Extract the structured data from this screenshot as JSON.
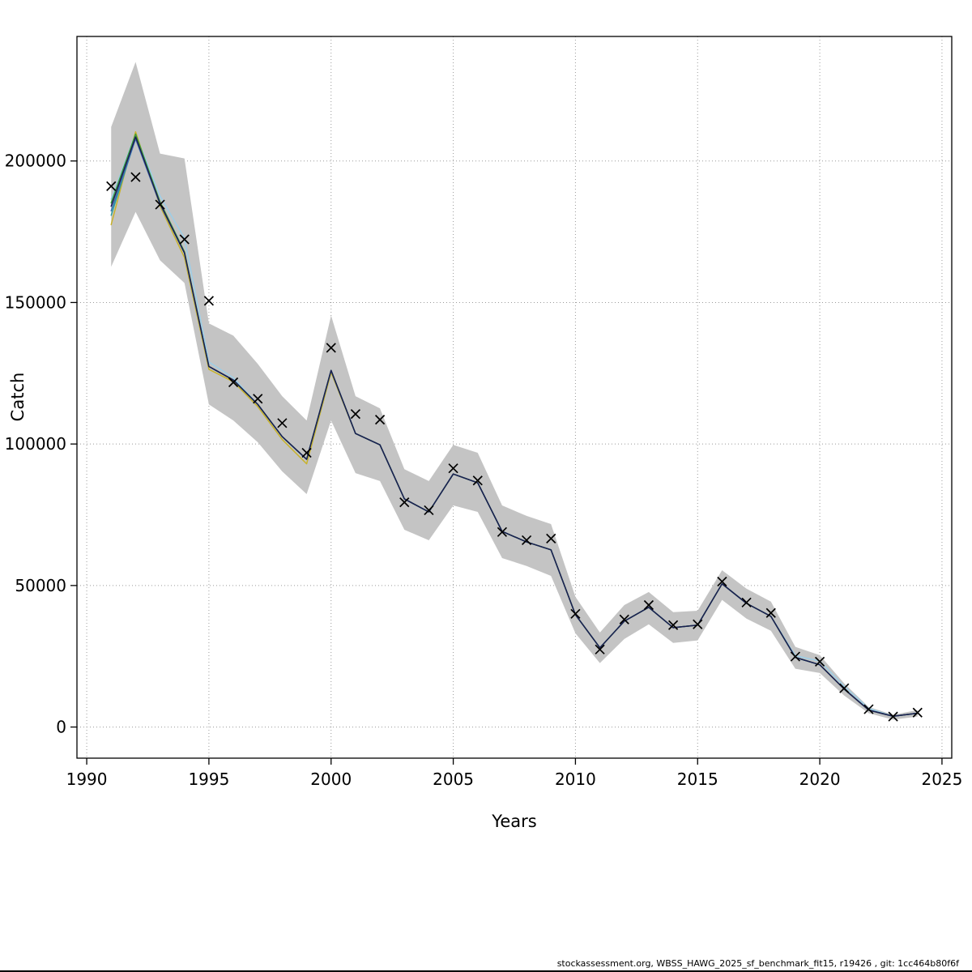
{
  "footer": {
    "text": "stockassessment.org, WBSS_HAWG_2025_sf_benchmark_fit15, r19426 , git: 1cc464b80f6f"
  },
  "chart_data": {
    "type": "line",
    "title": "",
    "xlabel": "Years",
    "ylabel": "Catch",
    "xlim": [
      1989.6,
      2025.4
    ],
    "ylim": [
      -11000,
      244000
    ],
    "x_ticks": [
      1990,
      1995,
      2000,
      2005,
      2010,
      2015,
      2020,
      2025
    ],
    "y_ticks": [
      0,
      50000,
      100000,
      150000,
      200000
    ],
    "grid": true,
    "legend": "none",
    "marker": "x",
    "band_color": "#c4c4c4",
    "grid_color": "#9a9a9a",
    "marker_color": "#000000",
    "years": [
      1991,
      1992,
      1993,
      1994,
      1995,
      1996,
      1997,
      1998,
      1999,
      2000,
      2001,
      2002,
      2003,
      2004,
      2005,
      2006,
      2007,
      2008,
      2009,
      2010,
      2011,
      2012,
      2013,
      2014,
      2015,
      2016,
      2017,
      2018,
      2019,
      2020,
      2021,
      2022,
      2023,
      2024
    ],
    "observed_catch": [
      191100,
      194300,
      184600,
      172300,
      150600,
      121800,
      116000,
      107400,
      96900,
      134000,
      110600,
      108600,
      79400,
      76600,
      91400,
      87100,
      68900,
      66000,
      66600,
      40000,
      27400,
      38000,
      43100,
      36000,
      36300,
      51400,
      44000,
      40300,
      24900,
      23100,
      13700,
      6300,
      3700,
      5100
    ],
    "fit": [
      184000,
      208500,
      185000,
      167500,
      127400,
      122600,
      114000,
      102600,
      94600,
      126000,
      103700,
      99700,
      80600,
      76000,
      89400,
      86300,
      69100,
      65400,
      62600,
      39700,
      28000,
      37400,
      42300,
      35100,
      36000,
      50600,
      43700,
      39100,
      24600,
      22000,
      13400,
      6000,
      3800,
      4900
    ],
    "band_upper": [
      212000,
      235000,
      202600,
      200900,
      142600,
      138300,
      128300,
      116900,
      108300,
      145400,
      116900,
      112600,
      91100,
      86900,
      99700,
      96900,
      78300,
      74600,
      71700,
      46000,
      33400,
      43100,
      47700,
      40600,
      41100,
      55400,
      48900,
      44300,
      28300,
      25400,
      15400,
      7100,
      4300,
      6000
    ],
    "band_lower": [
      162600,
      182000,
      164900,
      156900,
      114000,
      108300,
      100600,
      90300,
      82300,
      108300,
      89700,
      86900,
      69700,
      66000,
      78300,
      76000,
      59700,
      56900,
      53400,
      33100,
      22600,
      31100,
      36300,
      29700,
      30600,
      44900,
      38300,
      34000,
      20600,
      19100,
      11100,
      4900,
      2600,
      3700
    ],
    "fit_lines": [
      {
        "name": "fit-line-lightblue",
        "color": "#9ccee8",
        "deltas": [
          2500,
          1200,
          2600,
          5200,
          1600,
          800,
          0,
          0,
          0,
          0,
          0,
          0,
          0,
          0,
          0,
          0,
          0,
          0,
          0,
          0,
          0,
          0,
          0,
          0,
          0,
          0,
          0,
          0,
          600,
          1300,
          1000,
          600,
          0,
          0
        ]
      },
      {
        "name": "fit-line-yellow",
        "color": "#c8b22a",
        "deltas": [
          -6500,
          1800,
          -900,
          -1600,
          -1000,
          -600,
          -800,
          -1000,
          -1600,
          -700,
          0,
          0,
          0,
          0,
          0,
          0,
          0,
          0,
          0,
          0,
          0,
          0,
          0,
          0,
          0,
          0,
          0,
          0,
          0,
          0,
          0,
          0,
          0,
          0
        ]
      },
      {
        "name": "fit-line-teal",
        "color": "#2fa0a0",
        "deltas": [
          -3200,
          -400,
          0,
          0,
          0,
          0,
          0,
          0,
          0,
          0,
          0,
          0,
          0,
          0,
          0,
          0,
          0,
          0,
          0,
          0,
          0,
          0,
          0,
          0,
          0,
          0,
          0,
          0,
          0,
          0,
          0,
          0,
          0,
          0
        ]
      },
      {
        "name": "fit-line-blue",
        "color": "#3a6fb0",
        "deltas": [
          -1600,
          -700,
          -300,
          0,
          0,
          0,
          0,
          0,
          0,
          0,
          0,
          0,
          0,
          0,
          0,
          0,
          0,
          0,
          0,
          0,
          0,
          0,
          0,
          0,
          0,
          0,
          0,
          0,
          0,
          0,
          0,
          0,
          0,
          0
        ]
      },
      {
        "name": "fit-line-green",
        "color": "#3d9c3d",
        "deltas": [
          1200,
          1000,
          600,
          400,
          0,
          0,
          0,
          0,
          0,
          0,
          0,
          0,
          0,
          0,
          0,
          0,
          0,
          0,
          0,
          0,
          0,
          0,
          0,
          0,
          0,
          0,
          0,
          0,
          0,
          0,
          0,
          0,
          0,
          0
        ]
      },
      {
        "name": "fit-line-navy",
        "color": "#1c1c52",
        "deltas": [
          0,
          0,
          0,
          0,
          0,
          0,
          0,
          0,
          0,
          0,
          0,
          0,
          0,
          0,
          0,
          0,
          0,
          0,
          0,
          0,
          0,
          0,
          0,
          0,
          0,
          0,
          0,
          0,
          0,
          0,
          0,
          0,
          0,
          0
        ]
      }
    ]
  }
}
